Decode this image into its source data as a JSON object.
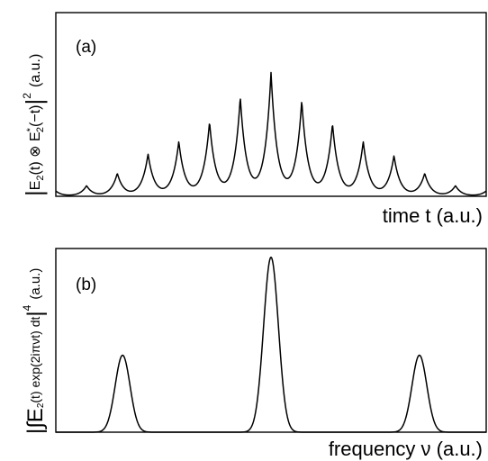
{
  "chart_data": [
    {
      "type": "line",
      "panel_label": "(a)",
      "xlabel": "time t (a.u.)",
      "ylabel": "|E2(t) ⊗ E2*(−t)|² (a.u.)",
      "ylabel_parts": {
        "bar_left": "|",
        "main": "E",
        "sub1": "2",
        "mid1": "(t) ⊗ E",
        "sup1": "*",
        "sub2": "2",
        "mid2": "(−t)",
        "bar_right": "|",
        "power": "2",
        "units": "(a.u.)"
      },
      "xlim": [
        -7,
        7
      ],
      "ylim": [
        0,
        1.05
      ],
      "grid": false,
      "peaks": {
        "x": [
          -7,
          -6,
          -5,
          -4,
          -3,
          -2,
          -1,
          0,
          1,
          2,
          3,
          4,
          5,
          6,
          7
        ],
        "y": [
          0.03,
          0.06,
          0.13,
          0.24,
          0.31,
          0.42,
          0.56,
          0.7,
          0.54,
          0.41,
          0.31,
          0.23,
          0.13,
          0.06,
          0.03
        ]
      }
    },
    {
      "type": "line",
      "panel_label": "(b)",
      "xlabel": "frequency ν (a.u.)",
      "ylabel": "|∫E2(t) exp(2iπνt) dt|⁴ (a.u.)",
      "ylabel_parts": {
        "bar_left": "|∫E",
        "sub1": "2",
        "main": "(t) exp(2iπνt) dt",
        "bar_right": "|",
        "power": "4",
        "units": "(a.u.)"
      },
      "xlim": [
        -1.45,
        1.45
      ],
      "ylim": [
        0,
        1.05
      ],
      "grid": false,
      "peaks": {
        "x": [
          -1.0,
          0.0,
          1.0
        ],
        "y": [
          0.44,
          1.0,
          0.44
        ]
      }
    }
  ]
}
